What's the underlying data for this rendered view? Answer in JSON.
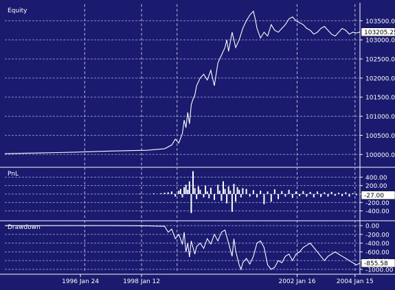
{
  "chart_data": [
    {
      "type": "line",
      "panel": "equity",
      "title": "Equity",
      "ylim": [
        99700,
        103900
      ],
      "yticks": [
        100000,
        100500,
        101000,
        101500,
        102000,
        102500,
        103000,
        103500
      ],
      "ytick_labels": [
        "100000.00",
        "100500.00",
        "101000.00",
        "101500.00",
        "102000.00",
        "102500.00",
        "103000.00",
        "103500.00"
      ],
      "current_value": 103205.25,
      "current_label": "103205.25",
      "x": [
        0,
        0.05,
        0.1,
        0.15,
        0.2,
        0.25,
        0.3,
        0.35,
        0.4,
        0.45,
        0.47,
        0.48,
        0.49,
        0.5,
        0.505,
        0.51,
        0.515,
        0.52,
        0.525,
        0.53,
        0.535,
        0.54,
        0.545,
        0.55,
        0.56,
        0.57,
        0.58,
        0.59,
        0.6,
        0.61,
        0.62,
        0.625,
        0.63,
        0.64,
        0.65,
        0.66,
        0.67,
        0.68,
        0.69,
        0.695,
        0.7,
        0.705,
        0.71,
        0.72,
        0.73,
        0.74,
        0.75,
        0.76,
        0.77,
        0.78,
        0.79,
        0.8,
        0.81,
        0.82,
        0.83,
        0.84,
        0.85,
        0.86,
        0.87,
        0.88,
        0.89,
        0.9,
        0.91,
        0.92,
        0.93,
        0.94,
        0.95,
        0.96,
        0.97,
        0.98,
        0.99,
        1.0
      ],
      "values": [
        100020,
        100030,
        100040,
        100050,
        100060,
        100075,
        100090,
        100100,
        100110,
        100150,
        100250,
        100400,
        100300,
        100550,
        100900,
        100700,
        101100,
        100800,
        101300,
        101450,
        101550,
        101800,
        101900,
        102000,
        102100,
        101950,
        102200,
        101800,
        102400,
        102600,
        102800,
        103000,
        102700,
        103200,
        102800,
        103000,
        103300,
        103500,
        103650,
        103700,
        103750,
        103550,
        103300,
        103050,
        103200,
        103100,
        103400,
        103250,
        103200,
        103300,
        103400,
        103550,
        103600,
        103500,
        103450,
        103400,
        103300,
        103250,
        103150,
        103200,
        103300,
        103350,
        103250,
        103150,
        103100,
        103200,
        103300,
        103250,
        103150,
        103200,
        103180,
        103205.25
      ]
    },
    {
      "type": "bar",
      "panel": "pnl",
      "title": "PnL",
      "ylim": [
        -600,
        600
      ],
      "yticks": [
        400,
        200,
        0,
        -200,
        -400
      ],
      "ytick_labels": [
        "400.00",
        "200.00",
        "",
        "-200.00",
        "-400.00"
      ],
      "current_value": -27.0,
      "current_label": "-27.00",
      "x": [
        0.38,
        0.42,
        0.44,
        0.45,
        0.46,
        0.47,
        0.48,
        0.49,
        0.495,
        0.5,
        0.505,
        0.51,
        0.515,
        0.52,
        0.525,
        0.53,
        0.535,
        0.54,
        0.545,
        0.55,
        0.56,
        0.565,
        0.57,
        0.575,
        0.58,
        0.59,
        0.6,
        0.605,
        0.61,
        0.615,
        0.62,
        0.625,
        0.63,
        0.635,
        0.64,
        0.645,
        0.65,
        0.655,
        0.66,
        0.665,
        0.67,
        0.68,
        0.69,
        0.7,
        0.71,
        0.72,
        0.73,
        0.74,
        0.75,
        0.76,
        0.77,
        0.78,
        0.79,
        0.8,
        0.81,
        0.82,
        0.83,
        0.84,
        0.85,
        0.86,
        0.87,
        0.88,
        0.89,
        0.9,
        0.91,
        0.92,
        0.93,
        0.94,
        0.95,
        0.96,
        0.97,
        0.98,
        0.99
      ],
      "values": [
        10,
        15,
        20,
        30,
        40,
        60,
        -60,
        80,
        120,
        -80,
        160,
        220,
        100,
        300,
        -450,
        540,
        140,
        -120,
        180,
        100,
        -80,
        200,
        60,
        -100,
        150,
        -140,
        220,
        80,
        -160,
        300,
        120,
        -220,
        180,
        80,
        -420,
        240,
        -180,
        160,
        100,
        -80,
        140,
        120,
        -60,
        90,
        -80,
        80,
        -240,
        60,
        -180,
        110,
        -120,
        70,
        -60,
        100,
        -90,
        60,
        -50,
        70,
        -60,
        50,
        -80,
        60,
        -70,
        40,
        -60,
        50,
        -40,
        30,
        -50,
        40,
        -60,
        20,
        -27
      ]
    },
    {
      "type": "line",
      "panel": "drawdown",
      "title": "Drawdown",
      "ylim": [
        -1080,
        80
      ],
      "yticks": [
        0,
        -200,
        -400,
        -600,
        -800,
        -1000
      ],
      "ytick_labels": [
        "0.00",
        "-200.00",
        "-400.00",
        "-600.00",
        "-800.00",
        "-1000.00"
      ],
      "current_value": -855.58,
      "current_label": "-855.58",
      "x": [
        0,
        0.1,
        0.2,
        0.3,
        0.4,
        0.45,
        0.46,
        0.47,
        0.48,
        0.49,
        0.5,
        0.505,
        0.51,
        0.515,
        0.52,
        0.525,
        0.53,
        0.535,
        0.54,
        0.55,
        0.56,
        0.57,
        0.58,
        0.59,
        0.6,
        0.61,
        0.62,
        0.63,
        0.64,
        0.645,
        0.65,
        0.66,
        0.665,
        0.67,
        0.68,
        0.69,
        0.7,
        0.71,
        0.72,
        0.73,
        0.74,
        0.75,
        0.76,
        0.77,
        0.78,
        0.79,
        0.8,
        0.81,
        0.82,
        0.83,
        0.84,
        0.85,
        0.86,
        0.87,
        0.88,
        0.89,
        0.9,
        0.91,
        0.92,
        0.93,
        0.94,
        0.95,
        0.96,
        0.97,
        0.98,
        0.99,
        1.0
      ],
      "values": [
        0,
        0,
        0,
        0,
        -5,
        -15,
        -150,
        -80,
        -300,
        -200,
        -420,
        -150,
        -600,
        -400,
        -720,
        -350,
        -500,
        -650,
        -480,
        -400,
        -520,
        -300,
        -420,
        -200,
        -350,
        -150,
        -100,
        -400,
        -700,
        -300,
        -580,
        -900,
        -1000,
        -850,
        -750,
        -880,
        -700,
        -400,
        -350,
        -500,
        -900,
        -1000,
        -950,
        -800,
        -850,
        -700,
        -650,
        -800,
        -650,
        -600,
        -500,
        -450,
        -400,
        -500,
        -600,
        -700,
        -800,
        -700,
        -650,
        -600,
        -650,
        -700,
        -750,
        -800,
        -850,
        -900,
        -855.58
      ]
    }
  ],
  "x_axis": {
    "labels": [
      "1996 Jan 24",
      "1998 Jan 12",
      "2002 Jan 16",
      "2004 Jan 15"
    ],
    "positions": [
      0.213,
      0.385,
      0.823,
      0.986
    ]
  },
  "colors": {
    "background": "#1a1a6e",
    "line": "#ffffff",
    "grid": "#8c8cc8"
  }
}
